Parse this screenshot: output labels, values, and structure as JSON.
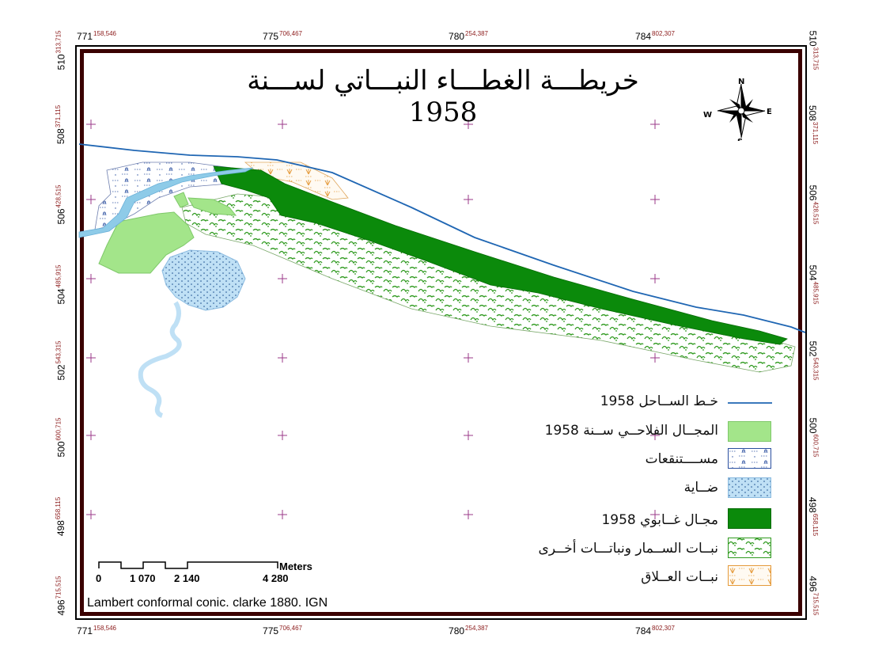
{
  "title": "خريطـــة الغطـــاء النبـــاتي لســـنة 1958",
  "x_ticks": [
    {
      "main": "771",
      "sup": "158,546"
    },
    {
      "main": "775",
      "sup": "706,467"
    },
    {
      "main": "780",
      "sup": "254,387"
    },
    {
      "main": "784",
      "sup": "802,307"
    }
  ],
  "y_ticks": [
    {
      "main": "510",
      "sup": "313,715"
    },
    {
      "main": "508",
      "sup": "371,115"
    },
    {
      "main": "506",
      "sup": "428,515"
    },
    {
      "main": "504",
      "sup": "485,915"
    },
    {
      "main": "502",
      "sup": "543,315"
    },
    {
      "main": "500",
      "sup": "600,715"
    },
    {
      "main": "498",
      "sup": "658,115"
    },
    {
      "main": "496",
      "sup": "715,515"
    }
  ],
  "north_arrow": {
    "n": "N",
    "s": "S",
    "e": "E",
    "w": "W",
    "icon": "compass-rose-icon"
  },
  "legend": [
    {
      "label": "خـط الســاحل 1958",
      "type": "line",
      "color": "#1f66b3"
    },
    {
      "label": "المجــال الفلاحــي ســنة 1958",
      "type": "fill",
      "color": "#a3e58a"
    },
    {
      "label": "مســــتنقعات",
      "type": "marsh",
      "color": "#2a4fa0"
    },
    {
      "label": "ضــاية",
      "type": "pond",
      "color": "#b8dcf3"
    },
    {
      "label": "مجـال غــابوي 1958",
      "type": "fill",
      "color": "#0b8a0b"
    },
    {
      "label": "نبــات الســمار ونباتـــات أخــرى",
      "type": "reeds",
      "color": "#2f9a1f"
    },
    {
      "label": "نبــات العــلاق",
      "type": "bramble",
      "color": "#e59a3a"
    }
  ],
  "scale_bar": {
    "labels": [
      "0",
      "1 070",
      "2 140",
      "4 280"
    ],
    "unit": "Meters"
  },
  "credit": "Lambert conformal conic. clarke 1880. IGN"
}
